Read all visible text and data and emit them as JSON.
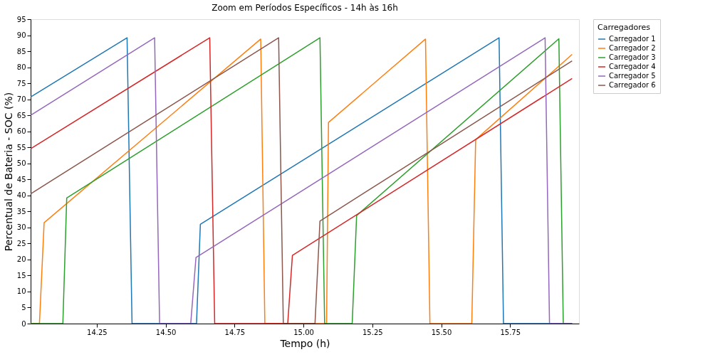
{
  "chart_data": {
    "type": "line",
    "title": "Zoom em Períodos Específicos - 14h às 16h",
    "xlabel": "Tempo (h)",
    "ylabel": "Percentual de Bateria - SOC (%)",
    "legend_title": "Carregadores",
    "legend": "top right",
    "grid": false,
    "line_style": "solid",
    "marker": "none",
    "xlim": [
      14.01,
      16.0
    ],
    "xticks": [
      {
        "value": 14.25,
        "label": "14.25"
      },
      {
        "value": 14.5,
        "label": "14.50"
      },
      {
        "value": 14.75,
        "label": "14.75"
      },
      {
        "value": 15.0,
        "label": "15.00"
      },
      {
        "value": 15.25,
        "label": "15.25"
      },
      {
        "value": 15.5,
        "label": "15.50"
      },
      {
        "value": 15.75,
        "label": "15.75"
      }
    ],
    "ylim": [
      0,
      95
    ],
    "yticks": [
      0,
      5,
      10,
      15,
      20,
      25,
      30,
      35,
      40,
      45,
      50,
      55,
      60,
      65,
      70,
      75,
      80,
      85,
      90,
      95
    ],
    "series": [
      {
        "name": "Carregador 1",
        "color": "#1f77b4",
        "x": [
          14.01,
          14.36,
          14.378,
          14.612,
          14.626,
          15.71,
          15.726,
          15.975
        ],
        "values": [
          70.7,
          89.2,
          0,
          0,
          31,
          89.2,
          0,
          0
        ]
      },
      {
        "name": "Carregador 2",
        "color": "#ff7f0e",
        "x": [
          14.01,
          14.042,
          14.059,
          14.845,
          14.86,
          15.084,
          15.091,
          15.443,
          15.459,
          15.611,
          15.625,
          15.975
        ],
        "values": [
          0,
          0,
          31.5,
          88.8,
          0,
          0,
          62.8,
          88.8,
          0,
          0,
          57.4,
          84.0
        ]
      },
      {
        "name": "Carregador 3",
        "color": "#2ca02c",
        "x": [
          14.01,
          14.127,
          14.141,
          15.06,
          15.077,
          15.177,
          15.193,
          15.927,
          15.943,
          15.975
        ],
        "values": [
          0,
          0,
          39.2,
          89.2,
          0,
          0,
          33.7,
          88.9,
          0,
          0
        ]
      },
      {
        "name": "Carregador 4",
        "color": "#d62728",
        "x": [
          14.01,
          14.66,
          14.678,
          14.943,
          14.96,
          15.975
        ],
        "values": [
          54.6,
          89.2,
          0,
          0,
          21.3,
          76.5
        ]
      },
      {
        "name": "Carregador 5",
        "color": "#9467bd",
        "x": [
          14.01,
          14.46,
          14.478,
          14.591,
          14.61,
          15.877,
          15.893,
          15.975
        ],
        "values": [
          65.0,
          89.2,
          0,
          0,
          20.6,
          89.2,
          0,
          0
        ]
      },
      {
        "name": "Carregador 6",
        "color": "#8c564b",
        "x": [
          14.01,
          14.91,
          14.927,
          15.042,
          15.06,
          15.975
        ],
        "values": [
          40.5,
          89.2,
          0,
          0,
          32.0,
          82.0
        ]
      }
    ]
  }
}
